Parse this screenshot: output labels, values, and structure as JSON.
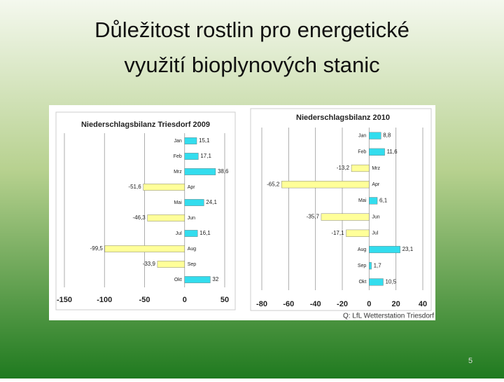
{
  "slide_title": "Důležitost rostlin pro energetické využití bioplynových stanic",
  "page_number": "5",
  "source": "Q: LfL Wetterstation Triesdorf",
  "chart_data": [
    {
      "type": "hbar",
      "title": "Niederschlagsbilanz Triesdorf 2009",
      "categories": [
        "Jan",
        "Feb",
        "Mrz",
        "Apr",
        "Mai",
        "Jun",
        "Jul",
        "Aug",
        "Sep",
        "Okt"
      ],
      "values": [
        15.1,
        17.1,
        38.6,
        -51.6,
        24.1,
        -46.3,
        16.1,
        -99.5,
        -33.9,
        32
      ],
      "value_labels": [
        "15,1",
        "17,1",
        "38,6",
        "-51,6",
        "24,1",
        "-46,3",
        "16,1",
        "-99,5",
        "-33,9",
        "32"
      ],
      "positive_color": "#33ddee",
      "negative_color": "#ffff99",
      "xlim": [
        -150,
        50
      ],
      "xticks": [
        -150,
        -100,
        -50,
        0,
        50
      ],
      "grid": true
    },
    {
      "type": "hbar",
      "title": "Niederschlagsbilanz 2010",
      "categories": [
        "Jan",
        "Feb",
        "Mrz",
        "Apr",
        "Mai",
        "Jun",
        "Jul",
        "Aug",
        "Sep",
        "Okt"
      ],
      "values": [
        8.8,
        11.6,
        -13.2,
        -65.2,
        6.1,
        -35.7,
        -17.1,
        23.1,
        1.7,
        10.5
      ],
      "value_labels": [
        "8,8",
        "11,6",
        "-13,2",
        "-65,2",
        "6,1",
        "-35,7",
        "-17,1",
        "23,1",
        "1,7",
        "10,5"
      ],
      "positive_color": "#33ddee",
      "negative_color": "#ffff99",
      "xlim": [
        -80,
        40
      ],
      "xticks": [
        -80,
        -60,
        -40,
        -20,
        0,
        20,
        40
      ],
      "grid": true
    }
  ]
}
